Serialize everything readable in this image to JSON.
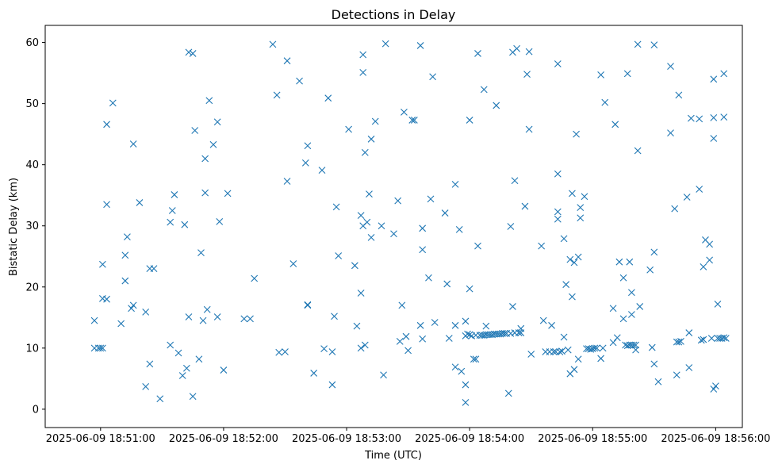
{
  "chart_data": {
    "type": "scatter",
    "title": "Detections in Delay",
    "xlabel": "Time (UTC)",
    "ylabel": "Bistatic Delay (km)",
    "x_unit": "seconds after 2025-06-09 18:51:00 UTC",
    "xlim": [
      -27,
      313
    ],
    "ylim": [
      -3.0,
      62.8
    ],
    "x_ticks": [
      {
        "value": 0,
        "label": "2025-06-09 18:51:00"
      },
      {
        "value": 60,
        "label": "2025-06-09 18:52:00"
      },
      {
        "value": 120,
        "label": "2025-06-09 18:53:00"
      },
      {
        "value": 180,
        "label": "2025-06-09 18:54:00"
      },
      {
        "value": 240,
        "label": "2025-06-09 18:55:00"
      },
      {
        "value": 300,
        "label": "2025-06-09 18:56:00"
      }
    ],
    "y_ticks": [
      0,
      10,
      20,
      30,
      40,
      50,
      60
    ],
    "grid": false,
    "legend": "none",
    "marker": "x",
    "color": "#1f77b4",
    "points": [
      [
        -3,
        14.5
      ],
      [
        -3,
        10
      ],
      [
        -1,
        10
      ],
      [
        0,
        10
      ],
      [
        1,
        10
      ],
      [
        1,
        23.7
      ],
      [
        1,
        18.1
      ],
      [
        3,
        46.6
      ],
      [
        3,
        33.5
      ],
      [
        3,
        18
      ],
      [
        6,
        50.1
      ],
      [
        10,
        14
      ],
      [
        12,
        25.2
      ],
      [
        12,
        21
      ],
      [
        13,
        28.2
      ],
      [
        15,
        16.5
      ],
      [
        16,
        43.4
      ],
      [
        16,
        17
      ],
      [
        19,
        33.8
      ],
      [
        22,
        3.7
      ],
      [
        22,
        15.9
      ],
      [
        24,
        23
      ],
      [
        24,
        7.4
      ],
      [
        26,
        23
      ],
      [
        29,
        1.7
      ],
      [
        34,
        30.6
      ],
      [
        34,
        10.5
      ],
      [
        35,
        32.5
      ],
      [
        36,
        35.1
      ],
      [
        38,
        9.2
      ],
      [
        40,
        5.5
      ],
      [
        41,
        30.2
      ],
      [
        42,
        6.7
      ],
      [
        43,
        58.4
      ],
      [
        43,
        15.1
      ],
      [
        45,
        58.2
      ],
      [
        45,
        2.1
      ],
      [
        46,
        45.6
      ],
      [
        48,
        8.2
      ],
      [
        49,
        25.6
      ],
      [
        50,
        14.5
      ],
      [
        51,
        41
      ],
      [
        51,
        35.4
      ],
      [
        52,
        16.3
      ],
      [
        53,
        50.5
      ],
      [
        55,
        43.3
      ],
      [
        57,
        47
      ],
      [
        57,
        15.1
      ],
      [
        58,
        30.7
      ],
      [
        60,
        6.4
      ],
      [
        62,
        35.3
      ],
      [
        70,
        14.8
      ],
      [
        73,
        14.8
      ],
      [
        75,
        21.4
      ],
      [
        84,
        59.7
      ],
      [
        86,
        51.4
      ],
      [
        87,
        9.3
      ],
      [
        90,
        9.4
      ],
      [
        91,
        57
      ],
      [
        91,
        37.3
      ],
      [
        94,
        23.8
      ],
      [
        97,
        53.7
      ],
      [
        100,
        40.3
      ],
      [
        101,
        43.1
      ],
      [
        101,
        17.1
      ],
      [
        101,
        17
      ],
      [
        104,
        5.9
      ],
      [
        108,
        39.1
      ],
      [
        109,
        9.9
      ],
      [
        111,
        50.9
      ],
      [
        113,
        9.4
      ],
      [
        113,
        4
      ],
      [
        114,
        15.2
      ],
      [
        115,
        33.1
      ],
      [
        116,
        25.1
      ],
      [
        121,
        45.8
      ],
      [
        124,
        23.5
      ],
      [
        125,
        13.6
      ],
      [
        127,
        10
      ],
      [
        127,
        19
      ],
      [
        127,
        31.7
      ],
      [
        128,
        58
      ],
      [
        128,
        55.1
      ],
      [
        128,
        30
      ],
      [
        129,
        10.5
      ],
      [
        129,
        42
      ],
      [
        130,
        30.6
      ],
      [
        131,
        35.2
      ],
      [
        132,
        44.2
      ],
      [
        132,
        28.1
      ],
      [
        134,
        47.1
      ],
      [
        137,
        30
      ],
      [
        138,
        5.6
      ],
      [
        139,
        59.8
      ],
      [
        143,
        28.7
      ],
      [
        145,
        34.1
      ],
      [
        146,
        11.1
      ],
      [
        147,
        17
      ],
      [
        148,
        48.6
      ],
      [
        149,
        11.9
      ],
      [
        150,
        9.6
      ],
      [
        152,
        47.3
      ],
      [
        153,
        47.3
      ],
      [
        156,
        59.5
      ],
      [
        156,
        13.7
      ],
      [
        157,
        29.6
      ],
      [
        157,
        26.1
      ],
      [
        157,
        11.5
      ],
      [
        160,
        21.5
      ],
      [
        161,
        34.4
      ],
      [
        162,
        54.4
      ],
      [
        163,
        14.2
      ],
      [
        168,
        32.1
      ],
      [
        169,
        20.5
      ],
      [
        170,
        11.6
      ],
      [
        173,
        36.8
      ],
      [
        173,
        13.7
      ],
      [
        173,
        6.9
      ],
      [
        175,
        29.4
      ],
      [
        176,
        6.2
      ],
      [
        178,
        14.4
      ],
      [
        178,
        12
      ],
      [
        178,
        1.1
      ],
      [
        178,
        4
      ],
      [
        179,
        12.3
      ],
      [
        180,
        12.2
      ],
      [
        180,
        19.7
      ],
      [
        180,
        47.3
      ],
      [
        181,
        12
      ],
      [
        182,
        8.2
      ],
      [
        183,
        8.2
      ],
      [
        183,
        12.1
      ],
      [
        184,
        26.7
      ],
      [
        184,
        58.2
      ],
      [
        185,
        12.1
      ],
      [
        186,
        12.1
      ],
      [
        187,
        52.3
      ],
      [
        187,
        12.1
      ],
      [
        188,
        13.6
      ],
      [
        188,
        12.2
      ],
      [
        189,
        12.2
      ],
      [
        190,
        12.2
      ],
      [
        191,
        12.2
      ],
      [
        192,
        12.3
      ],
      [
        193,
        12.3
      ],
      [
        193,
        49.7
      ],
      [
        194,
        12.3
      ],
      [
        195,
        12.3
      ],
      [
        196,
        12.4
      ],
      [
        197,
        12.4
      ],
      [
        198,
        12.4
      ],
      [
        199,
        2.6
      ],
      [
        200,
        29.9
      ],
      [
        200,
        12.4
      ],
      [
        201,
        58.4
      ],
      [
        201,
        16.8
      ],
      [
        202,
        12.5
      ],
      [
        202,
        37.4
      ],
      [
        203,
        59
      ],
      [
        204,
        12.5
      ],
      [
        205,
        12.5
      ],
      [
        205,
        13.2
      ],
      [
        207,
        33.2
      ],
      [
        208,
        54.8
      ],
      [
        209,
        58.5
      ],
      [
        209,
        45.8
      ],
      [
        210,
        9
      ],
      [
        215,
        26.7
      ],
      [
        216,
        14.5
      ],
      [
        217,
        9.4
      ],
      [
        219,
        9.4
      ],
      [
        220,
        13.7
      ],
      [
        221,
        9.4
      ],
      [
        222,
        9.4
      ],
      [
        223,
        56.5
      ],
      [
        223,
        38.5
      ],
      [
        223,
        32.3
      ],
      [
        223,
        31.1
      ],
      [
        224,
        9.4
      ],
      [
        225,
        9.5
      ],
      [
        226,
        27.9
      ],
      [
        226,
        11.8
      ],
      [
        227,
        20.4
      ],
      [
        228,
        9.7
      ],
      [
        229,
        24.5
      ],
      [
        229,
        5.8
      ],
      [
        230,
        35.3
      ],
      [
        230,
        18.4
      ],
      [
        231,
        6.5
      ],
      [
        231,
        24
      ],
      [
        232,
        45
      ],
      [
        233,
        24.9
      ],
      [
        233,
        8.2
      ],
      [
        234,
        33
      ],
      [
        234,
        31.3
      ],
      [
        236,
        34.8
      ],
      [
        237,
        9.9
      ],
      [
        238,
        9.9
      ],
      [
        239,
        9.8
      ],
      [
        240,
        9.9
      ],
      [
        241,
        10
      ],
      [
        242,
        10
      ],
      [
        244,
        54.7
      ],
      [
        244,
        8.3
      ],
      [
        245,
        10
      ],
      [
        246,
        50.2
      ],
      [
        250,
        16.5
      ],
      [
        250,
        10.9
      ],
      [
        251,
        46.6
      ],
      [
        252,
        11.7
      ],
      [
        253,
        24.1
      ],
      [
        255,
        21.5
      ],
      [
        255,
        14.8
      ],
      [
        256,
        10.5
      ],
      [
        257,
        54.9
      ],
      [
        257,
        10.4
      ],
      [
        258,
        24.1
      ],
      [
        258,
        10.5
      ],
      [
        259,
        15.5
      ],
      [
        259,
        10.5
      ],
      [
        259,
        19.1
      ],
      [
        260,
        10.5
      ],
      [
        261,
        10.5
      ],
      [
        261,
        9.7
      ],
      [
        262,
        59.7
      ],
      [
        262,
        42.3
      ],
      [
        263,
        16.8
      ],
      [
        268,
        22.8
      ],
      [
        269,
        10.1
      ],
      [
        270,
        59.6
      ],
      [
        270,
        25.7
      ],
      [
        270,
        7.4
      ],
      [
        272,
        4.5
      ],
      [
        278,
        56.1
      ],
      [
        278,
        45.2
      ],
      [
        280,
        32.8
      ],
      [
        281,
        5.6
      ],
      [
        281,
        11
      ],
      [
        282,
        11
      ],
      [
        282,
        51.4
      ],
      [
        283,
        11.1
      ],
      [
        286,
        34.7
      ],
      [
        287,
        6.8
      ],
      [
        287,
        12.5
      ],
      [
        288,
        47.6
      ],
      [
        292,
        47.5
      ],
      [
        292,
        36
      ],
      [
        293,
        11.3
      ],
      [
        294,
        11.4
      ],
      [
        294,
        23.3
      ],
      [
        295,
        27.7
      ],
      [
        297,
        24.4
      ],
      [
        297,
        27
      ],
      [
        298,
        11.6
      ],
      [
        299,
        54
      ],
      [
        299,
        47.7
      ],
      [
        299,
        44.3
      ],
      [
        299,
        3.3
      ],
      [
        300,
        3.8
      ],
      [
        301,
        17.2
      ],
      [
        301,
        11.6
      ],
      [
        302,
        11.6
      ],
      [
        303,
        11.6
      ],
      [
        304,
        11.7
      ],
      [
        304,
        54.9
      ],
      [
        304,
        47.8
      ],
      [
        305,
        11.6
      ]
    ]
  }
}
